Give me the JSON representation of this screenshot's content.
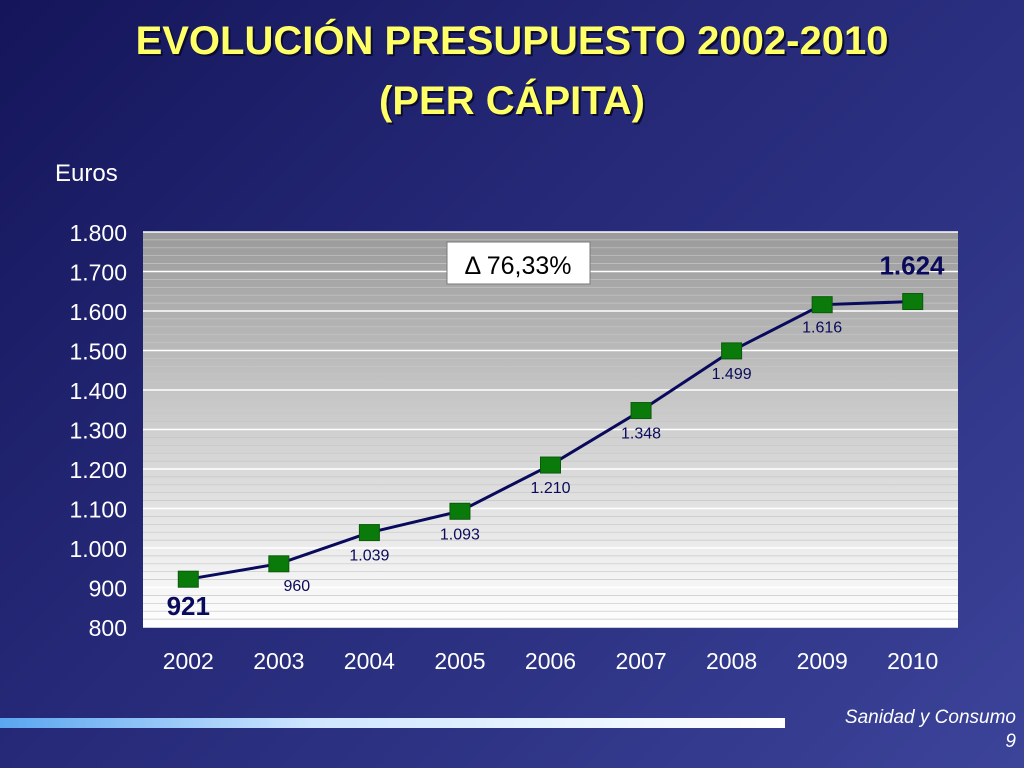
{
  "slide": {
    "title_line1": "EVOLUCIÓN PRESUPUESTO 2002-2010",
    "title_line2": "(PER CÁPITA)",
    "footer": "Sanidad y Consumo",
    "page_number": "9"
  },
  "chart_data": {
    "type": "line",
    "ylabel": "Euros",
    "categories": [
      "2002",
      "2003",
      "2004",
      "2005",
      "2006",
      "2007",
      "2008",
      "2009",
      "2010"
    ],
    "series": [
      {
        "values": [
          921,
          960,
          1039,
          1093,
          1210,
          1348,
          1499,
          1616,
          1624
        ]
      }
    ],
    "data_labels": [
      "921",
      "960",
      "1.039",
      "1.093",
      "1.210",
      "1.348",
      "1.499",
      "1.616",
      "1.624"
    ],
    "ylim": [
      800,
      1800
    ],
    "yticks": [
      800,
      900,
      1000,
      1100,
      1200,
      1300,
      1400,
      1500,
      1600,
      1700,
      1800
    ],
    "ytick_labels": [
      "800",
      "900",
      "1.000",
      "1.100",
      "1.200",
      "1.300",
      "1.400",
      "1.500",
      "1.600",
      "1.700",
      "1.800"
    ],
    "annotation": "Δ 76,33%",
    "grid": true,
    "colors": {
      "line": "#0a0a5c",
      "marker": "#0a7a0a",
      "label": "#0a0a5c"
    }
  }
}
